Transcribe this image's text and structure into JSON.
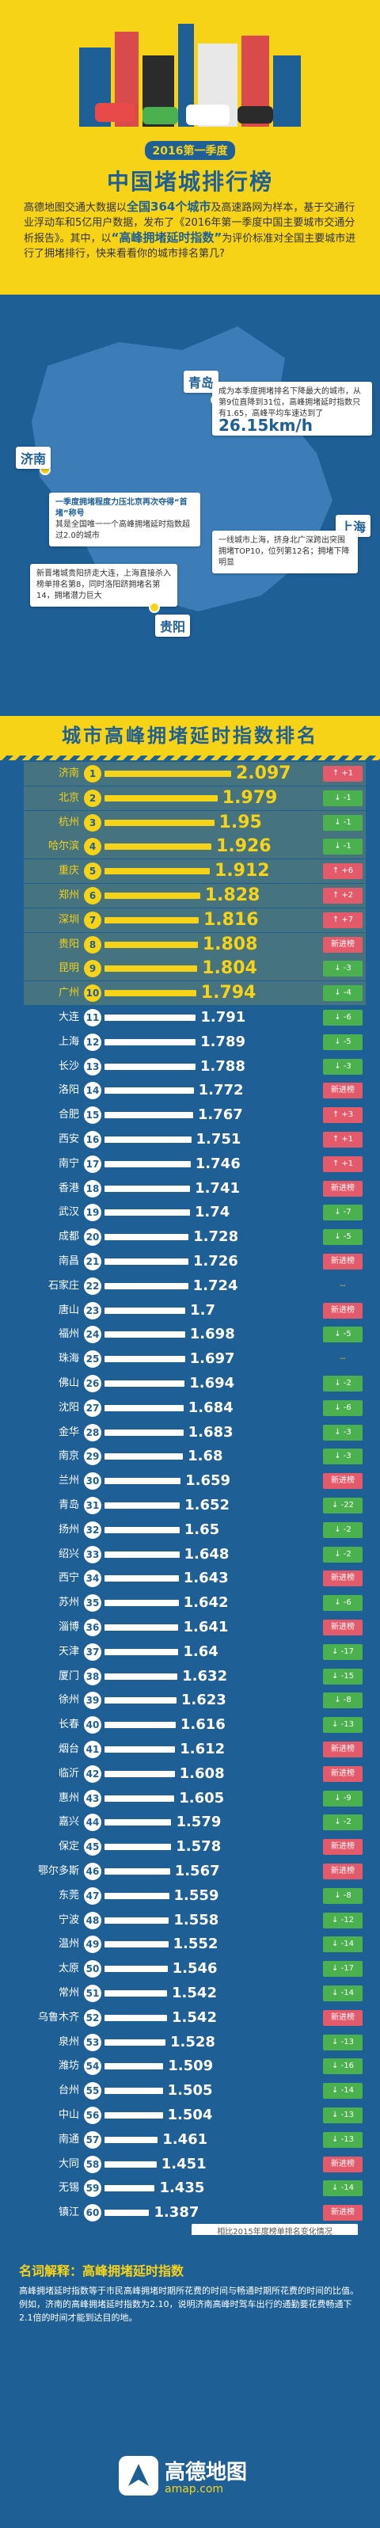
{
  "header": {
    "subtitle": "2016第一季度",
    "title": "中国堵城排行榜",
    "intro_pre": "高德地图交通大数据以",
    "intro_hl1": "全国364个城市",
    "intro_mid": "及高速路网为样本，基于交通行业浮动车和5亿用户数据，发布了《2016年第一季度中国主要城市交通分析报告》。其中，以",
    "intro_hl2": "“高峰拥堵延时指数”",
    "intro_post": "为评价标准对全国主要城市进行了拥堵排行，快来看看你的城市排名第几?"
  },
  "map": {
    "qingdao": "青岛",
    "qingdao_text": "成为本季度拥堵排名下降最大的城市，从第9位直降到31位，高峰拥堵延时指数只有1.65，高峰平均车速达到了",
    "qingdao_speed": "26.15km/h",
    "jinan": "济南",
    "jinan_title": "一季度拥堵程度力压北京再次夺得“首堵”称号",
    "jinan_text": "其是全国唯一一个高峰拥堵延时指数超过2.0的城市",
    "shanghai": "上海",
    "shanghai_text": "一线城市上海，挤身北广深跨出突围拥堵TOP10，位列第12名；拥堵下降明显",
    "guiyang": "贵阳",
    "guiyang_text": "新晋堵城贵阳挤走大连，上海直接杀入榜单排名第8，同时洛阳跻拥堵名第14，拥堵潜力巨大"
  },
  "rank_title": "城市高峰拥堵延时指数排名",
  "legend_note": "相比2015年度榜单排名变化情况",
  "colors": {
    "yellow": "#f7d317",
    "blue": "#1e5f96",
    "up": "#e35a6b",
    "down": "#4bb04e"
  },
  "chart_data": {
    "type": "bar",
    "title": "城市高峰拥堵延时指数排名",
    "rows": [
      {
        "rank": 1,
        "city": "济南",
        "value": 2.097,
        "change": "up",
        "label": "+1"
      },
      {
        "rank": 2,
        "city": "北京",
        "value": 1.979,
        "change": "down",
        "label": "-1"
      },
      {
        "rank": 3,
        "city": "杭州",
        "value": 1.95,
        "change": "down",
        "label": "-1"
      },
      {
        "rank": 4,
        "city": "哈尔滨",
        "value": 1.926,
        "change": "down",
        "label": "-1"
      },
      {
        "rank": 5,
        "city": "重庆",
        "value": 1.912,
        "change": "up",
        "label": "+6"
      },
      {
        "rank": 6,
        "city": "郑州",
        "value": 1.828,
        "change": "up",
        "label": "+2"
      },
      {
        "rank": 7,
        "city": "深圳",
        "value": 1.816,
        "change": "up",
        "label": "+7"
      },
      {
        "rank": 8,
        "city": "贵阳",
        "value": 1.808,
        "change": "new",
        "label": "新进榜"
      },
      {
        "rank": 9,
        "city": "昆明",
        "value": 1.804,
        "change": "down",
        "label": "-3"
      },
      {
        "rank": 10,
        "city": "广州",
        "value": 1.794,
        "change": "down",
        "label": "-4"
      },
      {
        "rank": 11,
        "city": "大连",
        "value": 1.791,
        "change": "down",
        "label": "-6"
      },
      {
        "rank": 12,
        "city": "上海",
        "value": 1.789,
        "change": "down",
        "label": "-5"
      },
      {
        "rank": 13,
        "city": "长沙",
        "value": 1.788,
        "change": "down",
        "label": "-3"
      },
      {
        "rank": 14,
        "city": "洛阳",
        "value": 1.772,
        "change": "new",
        "label": "新进榜"
      },
      {
        "rank": 15,
        "city": "合肥",
        "value": 1.767,
        "change": "up",
        "label": "+3"
      },
      {
        "rank": 16,
        "city": "西安",
        "value": 1.751,
        "change": "up",
        "label": "+1"
      },
      {
        "rank": 17,
        "city": "南宁",
        "value": 1.746,
        "change": "up",
        "label": "+1"
      },
      {
        "rank": 18,
        "city": "香港",
        "value": 1.741,
        "change": "new",
        "label": "新进榜"
      },
      {
        "rank": 19,
        "city": "武汉",
        "value": 1.74,
        "change": "down",
        "label": "-7"
      },
      {
        "rank": 20,
        "city": "成都",
        "value": 1.728,
        "change": "down",
        "label": "-5"
      },
      {
        "rank": 21,
        "city": "南昌",
        "value": 1.726,
        "change": "new",
        "label": "新进榜"
      },
      {
        "rank": 22,
        "city": "石家庄",
        "value": 1.724,
        "change": "same",
        "label": "--"
      },
      {
        "rank": 23,
        "city": "唐山",
        "value": 1.7,
        "change": "new",
        "label": "新进榜"
      },
      {
        "rank": 24,
        "city": "福州",
        "value": 1.698,
        "change": "down",
        "label": "-5"
      },
      {
        "rank": 25,
        "city": "珠海",
        "value": 1.697,
        "change": "same",
        "label": "--"
      },
      {
        "rank": 26,
        "city": "佛山",
        "value": 1.694,
        "change": "down",
        "label": "-2"
      },
      {
        "rank": 27,
        "city": "沈阳",
        "value": 1.684,
        "change": "down",
        "label": "-6"
      },
      {
        "rank": 28,
        "city": "金华",
        "value": 1.683,
        "change": "down",
        "label": "-3"
      },
      {
        "rank": 29,
        "city": "南京",
        "value": 1.68,
        "change": "down",
        "label": "-3"
      },
      {
        "rank": 30,
        "city": "兰州",
        "value": 1.659,
        "change": "new",
        "label": "新进榜"
      },
      {
        "rank": 31,
        "city": "青岛",
        "value": 1.652,
        "change": "down",
        "label": "-22"
      },
      {
        "rank": 32,
        "city": "扬州",
        "value": 1.65,
        "change": "down",
        "label": "-2"
      },
      {
        "rank": 33,
        "city": "绍兴",
        "value": 1.648,
        "change": "down",
        "label": "-2"
      },
      {
        "rank": 34,
        "city": "西宁",
        "value": 1.643,
        "change": "new",
        "label": "新进榜"
      },
      {
        "rank": 35,
        "city": "苏州",
        "value": 1.642,
        "change": "down",
        "label": "-6"
      },
      {
        "rank": 36,
        "city": "淄博",
        "value": 1.641,
        "change": "new",
        "label": "新进榜"
      },
      {
        "rank": 37,
        "city": "天津",
        "value": 1.64,
        "change": "down",
        "label": "-17"
      },
      {
        "rank": 38,
        "city": "厦门",
        "value": 1.632,
        "change": "down",
        "label": "-15"
      },
      {
        "rank": 39,
        "city": "徐州",
        "value": 1.623,
        "change": "down",
        "label": "-8"
      },
      {
        "rank": 40,
        "city": "长春",
        "value": 1.616,
        "change": "down",
        "label": "-13"
      },
      {
        "rank": 41,
        "city": "烟台",
        "value": 1.612,
        "change": "new",
        "label": "新进榜"
      },
      {
        "rank": 42,
        "city": "临沂",
        "value": 1.608,
        "change": "new",
        "label": "新进榜"
      },
      {
        "rank": 43,
        "city": "惠州",
        "value": 1.605,
        "change": "down",
        "label": "-9"
      },
      {
        "rank": 44,
        "city": "嘉兴",
        "value": 1.579,
        "change": "down",
        "label": "-2"
      },
      {
        "rank": 45,
        "city": "保定",
        "value": 1.578,
        "change": "new",
        "label": "新进榜"
      },
      {
        "rank": 46,
        "city": "鄂尔多斯",
        "value": 1.567,
        "change": "new",
        "label": "新进榜"
      },
      {
        "rank": 47,
        "city": "东莞",
        "value": 1.559,
        "change": "down",
        "label": "-8"
      },
      {
        "rank": 48,
        "city": "宁波",
        "value": 1.558,
        "change": "down",
        "label": "-12"
      },
      {
        "rank": 49,
        "city": "温州",
        "value": 1.552,
        "change": "down",
        "label": "-14"
      },
      {
        "rank": 50,
        "city": "太原",
        "value": 1.546,
        "change": "down",
        "label": "-17"
      },
      {
        "rank": 51,
        "city": "常州",
        "value": 1.542,
        "change": "down",
        "label": "-14"
      },
      {
        "rank": 52,
        "city": "乌鲁木齐",
        "value": 1.542,
        "change": "new",
        "label": "新进榜"
      },
      {
        "rank": 53,
        "city": "泉州",
        "value": 1.528,
        "change": "down",
        "label": "-13"
      },
      {
        "rank": 54,
        "city": "潍坊",
        "value": 1.509,
        "change": "down",
        "label": "-16"
      },
      {
        "rank": 55,
        "city": "台州",
        "value": 1.505,
        "change": "down",
        "label": "-14"
      },
      {
        "rank": 56,
        "city": "中山",
        "value": 1.504,
        "change": "down",
        "label": "-13"
      },
      {
        "rank": 57,
        "city": "南通",
        "value": 1.461,
        "change": "down",
        "label": "-13"
      },
      {
        "rank": 58,
        "city": "大同",
        "value": 1.451,
        "change": "new",
        "label": "新进榜"
      },
      {
        "rank": 59,
        "city": "无锡",
        "value": 1.435,
        "change": "down",
        "label": "-14"
      },
      {
        "rank": 60,
        "city": "镇江",
        "value": 1.387,
        "change": "new",
        "label": "新进榜"
      }
    ]
  },
  "footer": {
    "term_title": "名词解释：高峰拥堵延时指数",
    "term_body": "高峰拥堵延时指数等于市民高峰拥堵时期所花费的时间与畅通时期所花费的时间的比值。例如，济南的高峰拥堵延时指数为2.10，说明济南高峰时驾车出行的通勤要花费畅通下2.1倍的时间才能到达目的地。",
    "logo_cn": "高德地图",
    "logo_url": "amap.com"
  }
}
